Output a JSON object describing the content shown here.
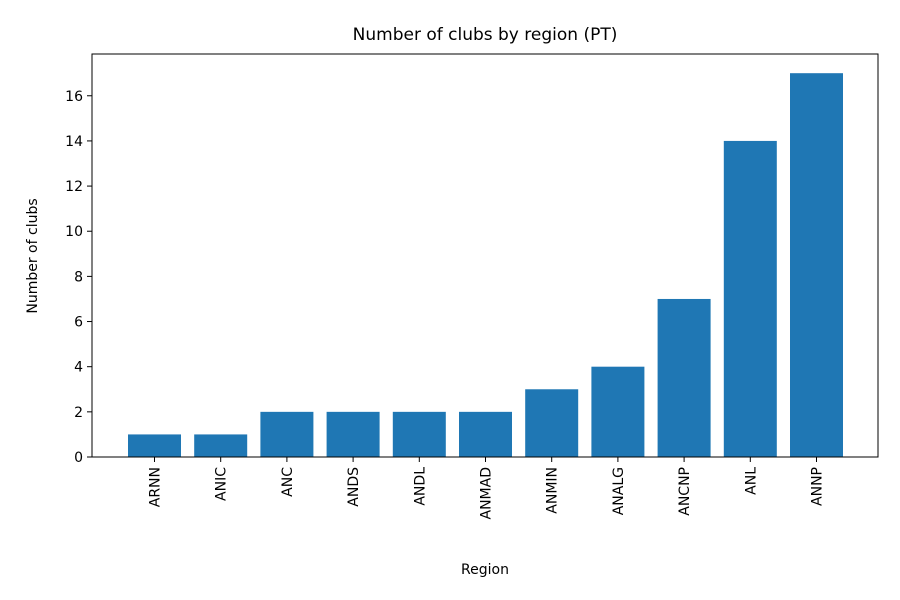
{
  "chart_data": {
    "type": "bar",
    "title": "Number of clubs by region (PT)",
    "xlabel": "Region",
    "ylabel": "Number of clubs",
    "categories": [
      "ARNN",
      "ANIC",
      "ANC",
      "ANDS",
      "ANDL",
      "ANMAD",
      "ANMIN",
      "ANALG",
      "ANCNP",
      "ANL",
      "ANNP"
    ],
    "values": [
      1,
      1,
      2,
      2,
      2,
      2,
      3,
      4,
      7,
      14,
      17
    ],
    "ylim": [
      0,
      17.85
    ],
    "yticks": [
      0,
      2,
      4,
      6,
      8,
      10,
      12,
      14,
      16
    ],
    "grid": false,
    "bar_color": "#1f77b4"
  }
}
